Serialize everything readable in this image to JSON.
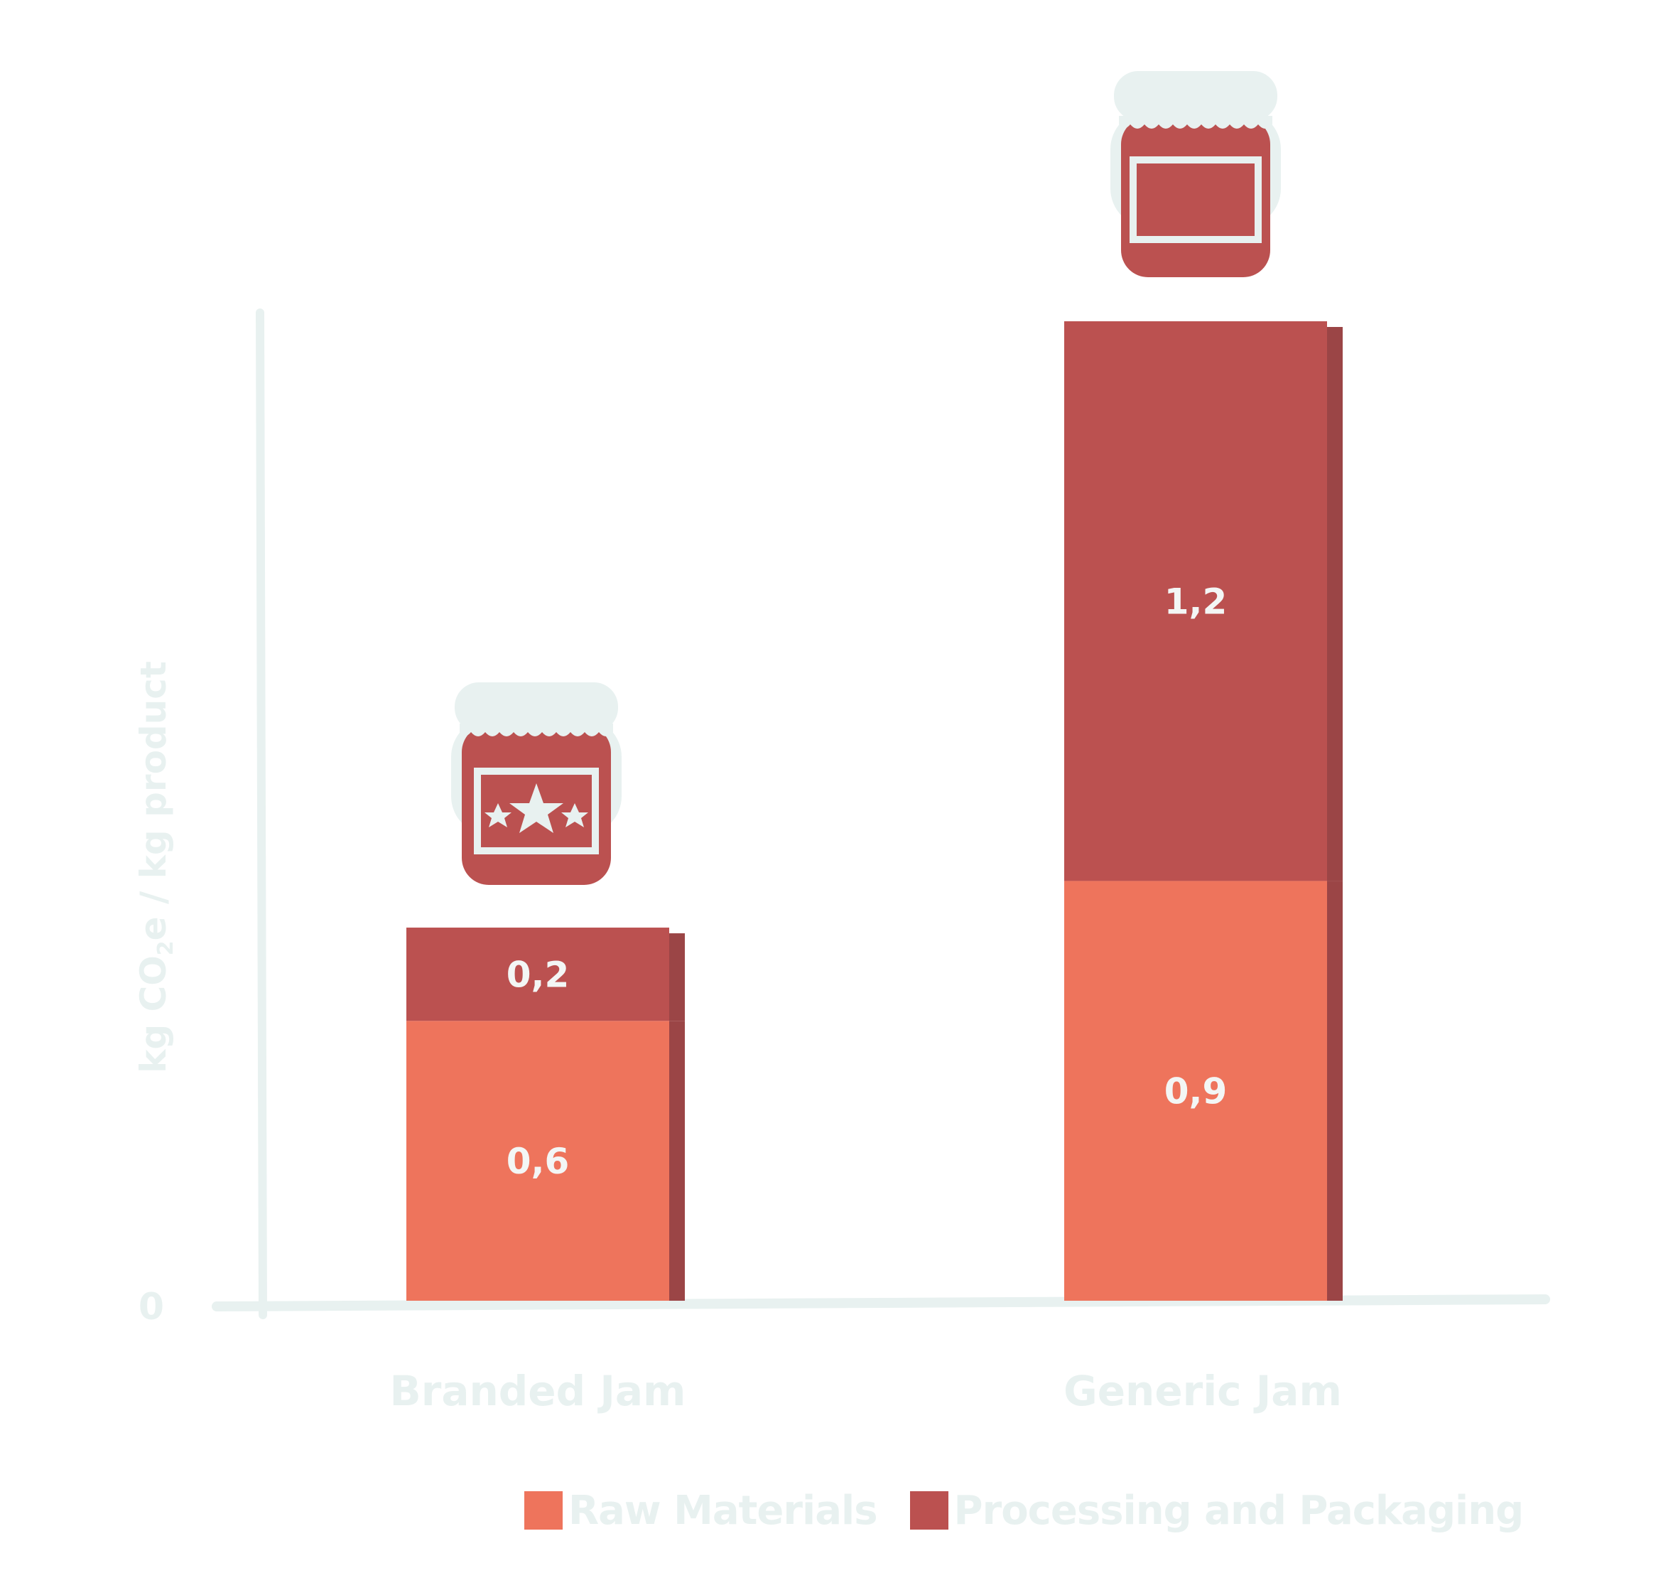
{
  "chart_data": {
    "type": "bar",
    "stacked": true,
    "categories": [
      "Branded Jam",
      "Generic Jam"
    ],
    "series": [
      {
        "name": "Raw Materials",
        "values": [
          0.6,
          0.9
        ],
        "labels": [
          "0,6",
          "0,9"
        ],
        "color": "#ee745c"
      },
      {
        "name": "Processing and Packaging",
        "values": [
          0.2,
          1.2
        ],
        "labels": [
          "0,2",
          "1,2"
        ],
        "color": "#bb5150"
      }
    ],
    "ylabel": "kg CO2e / kg product",
    "ylabel_parts": {
      "main": "kg CO",
      "sub": "2",
      "tail": "e / kg product"
    },
    "ytick_zero": "0",
    "ylim": [
      0,
      2.1
    ],
    "grid": false,
    "legend_position": "bottom"
  },
  "icons": {
    "branded_jar": "jam-jar-with-stars-icon",
    "generic_jar": "jam-jar-plain-icon"
  },
  "colors": {
    "axis": "#e8f1f0",
    "bar_side": "#9b4546",
    "jar_lid": "#e8f1f0"
  }
}
